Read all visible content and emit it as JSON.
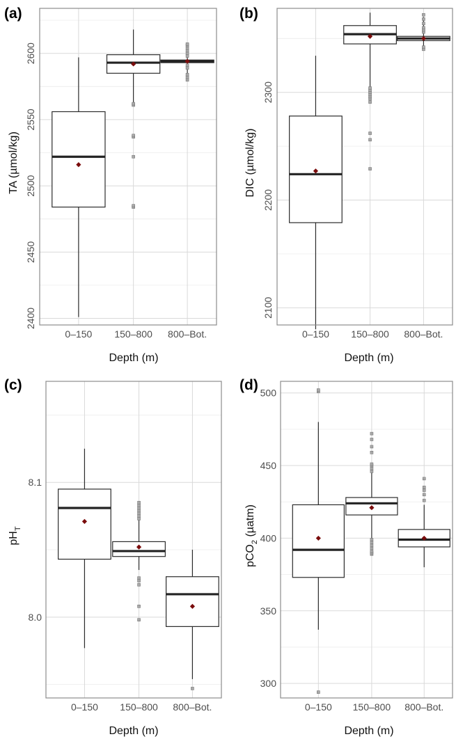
{
  "colors": {
    "mean_marker": "#7a0c0c",
    "box_line": "#2b2b2b",
    "outlier": "#aaaaaa",
    "grid": "#d9d9d9",
    "frame": "#8c8c8c"
  },
  "chart_data": [
    {
      "type": "box",
      "panel_label": "(a)",
      "ylabel": "TA (µmol/kg)",
      "xlabel": "Depth (m)",
      "categories": [
        "0–150",
        "150–800",
        "800–Bot."
      ],
      "ylim": [
        2395,
        2634
      ],
      "y_ticks": [
        2400,
        2450,
        2500,
        2550,
        2600
      ],
      "y_minor_ticks": [
        2425,
        2475,
        2525,
        2575,
        2625
      ],
      "tick_rotation": -90,
      "grid": true,
      "boxes": [
        {
          "min": 2401,
          "q1": 2484,
          "median": 2522,
          "q3": 2556,
          "max": 2597,
          "mean": 2516,
          "outliers": []
        },
        {
          "min": 2563,
          "q1": 2585,
          "median": 2593,
          "q3": 2599,
          "max": 2618,
          "mean": 2592,
          "outliers": [
            2484,
            2485,
            2522,
            2537,
            2538,
            2561,
            2562
          ]
        },
        {
          "min": 2582,
          "q1": 2593,
          "median": 2594,
          "q3": 2595,
          "max": 2606,
          "mean": 2594,
          "outliers": [
            2580,
            2582,
            2584,
            2589,
            2591,
            2598,
            2600,
            2602,
            2604,
            2606,
            2607
          ]
        }
      ]
    },
    {
      "type": "box",
      "panel_label": "(b)",
      "ylabel": "DIC (µmol/kg)",
      "xlabel": "Depth (m)",
      "categories": [
        "0–150",
        "150–800",
        "800–Bot."
      ],
      "ylim": [
        2084,
        2378
      ],
      "y_ticks": [
        2100,
        2200,
        2300
      ],
      "y_minor_ticks": [
        2150,
        2250,
        2350
      ],
      "tick_rotation": -90,
      "grid": true,
      "boxes": [
        {
          "min": 2080,
          "q1": 2179,
          "median": 2224,
          "q3": 2278,
          "max": 2334,
          "mean": 2227,
          "outliers": []
        },
        {
          "min": 2305,
          "q1": 2345,
          "median": 2354,
          "q3": 2362,
          "max": 2374,
          "mean": 2352,
          "outliers": [
            2229,
            2256,
            2262,
            2291,
            2294,
            2296,
            2298,
            2300,
            2302,
            2304
          ]
        },
        {
          "min": 2340,
          "q1": 2348,
          "median": 2350,
          "q3": 2352,
          "max": 2370,
          "mean": 2350,
          "outliers": [
            2340,
            2342,
            2356,
            2358,
            2360,
            2364,
            2368,
            2372
          ]
        }
      ]
    },
    {
      "type": "box",
      "panel_label": "(c)",
      "ylabel": "pH",
      "ylabel_subscript": "T",
      "xlabel": "Depth (m)",
      "categories": [
        "0–150",
        "150–800",
        "800–Bot."
      ],
      "ylim": [
        7.94,
        8.175
      ],
      "y_ticks": [
        8.0,
        8.1
      ],
      "y_tick_labels": [
        "8.0",
        "8.1"
      ],
      "y_minor_ticks": [
        7.95,
        8.05,
        8.15
      ],
      "tick_rotation": 0,
      "grid": true,
      "boxes": [
        {
          "min": 7.977,
          "q1": 8.043,
          "median": 8.081,
          "q3": 8.095,
          "max": 8.125,
          "mean": 8.071,
          "outliers": []
        },
        {
          "min": 8.035,
          "q1": 8.045,
          "median": 8.049,
          "q3": 8.056,
          "max": 8.077,
          "mean": 8.052,
          "outliers": [
            7.998,
            8.008,
            8.024,
            8.027,
            8.029,
            8.073,
            8.075,
            8.077,
            8.079,
            8.081,
            8.083,
            8.085
          ]
        },
        {
          "min": 7.954,
          "q1": 7.993,
          "median": 8.017,
          "q3": 8.03,
          "max": 8.05,
          "mean": 8.008,
          "outliers": [
            7.947
          ]
        }
      ]
    },
    {
      "type": "box",
      "panel_label": "(d)",
      "ylabel": "pCO",
      "ylabel_subscript": "2",
      "ylabel_suffix": " (µatm)",
      "xlabel": "Depth (m)",
      "categories": [
        "0–150",
        "150–800",
        "800–Bot."
      ],
      "ylim": [
        290,
        508
      ],
      "y_ticks": [
        300,
        350,
        400,
        450,
        500
      ],
      "y_minor_ticks": [
        325,
        375,
        425,
        475
      ],
      "tick_rotation": 0,
      "grid": true,
      "boxes": [
        {
          "min": 337,
          "q1": 373,
          "median": 392,
          "q3": 423,
          "max": 480,
          "mean": 400,
          "outliers": [
            294,
            501,
            502
          ]
        },
        {
          "min": 399,
          "q1": 416,
          "median": 424,
          "q3": 428,
          "max": 445,
          "mean": 421,
          "outliers": [
            389,
            390,
            391,
            393,
            395,
            397,
            399,
            446,
            448,
            450,
            451,
            459,
            463,
            468,
            472
          ]
        },
        {
          "min": 380,
          "q1": 394,
          "median": 399,
          "q3": 406,
          "max": 423,
          "mean": 400,
          "outliers": [
            426,
            430,
            433,
            435,
            441
          ]
        }
      ]
    }
  ]
}
